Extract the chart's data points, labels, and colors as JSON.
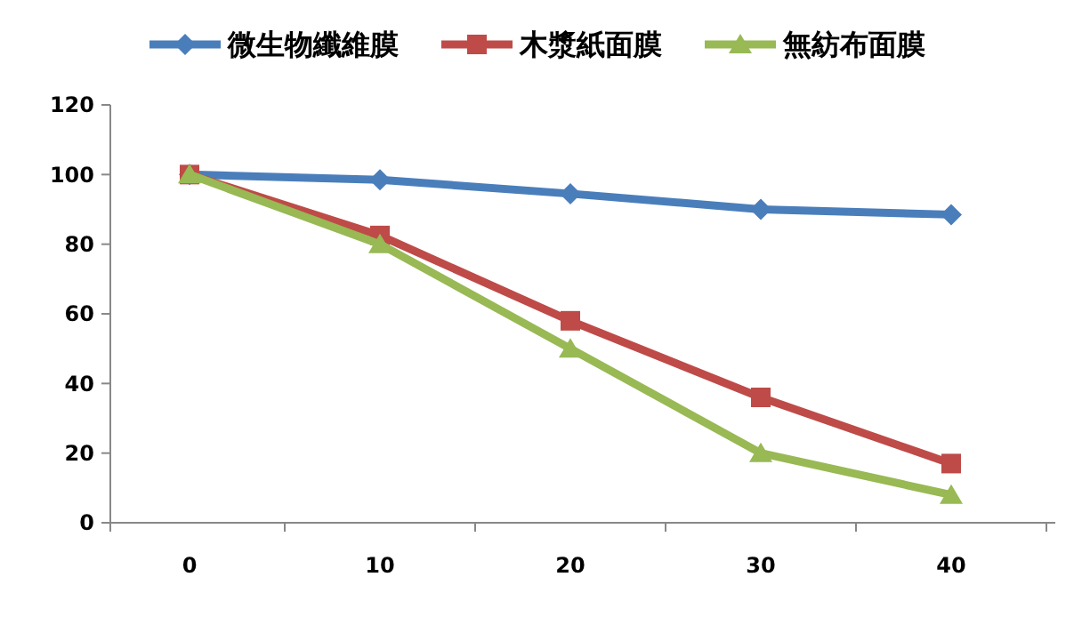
{
  "chart_data": {
    "type": "line",
    "categories": [
      "0",
      "10",
      "20",
      "30",
      "40"
    ],
    "ylim": [
      0,
      120
    ],
    "yticks": [
      0,
      20,
      40,
      60,
      80,
      100,
      120
    ],
    "grid": false,
    "legend": "top",
    "line_style": "solid",
    "series": [
      {
        "name": "微生物纖維膜",
        "color": "#4a7ebb",
        "marker": "diamond",
        "values": [
          100,
          98.5,
          94.5,
          90,
          88.5
        ]
      },
      {
        "name": "木漿紙面膜",
        "color": "#be4b48",
        "marker": "square",
        "values": [
          100,
          82.5,
          58,
          36,
          17
        ]
      },
      {
        "name": "無紡布面膜",
        "color": "#98b954",
        "marker": "triangle",
        "values": [
          100,
          80,
          50,
          20,
          8
        ]
      }
    ]
  }
}
